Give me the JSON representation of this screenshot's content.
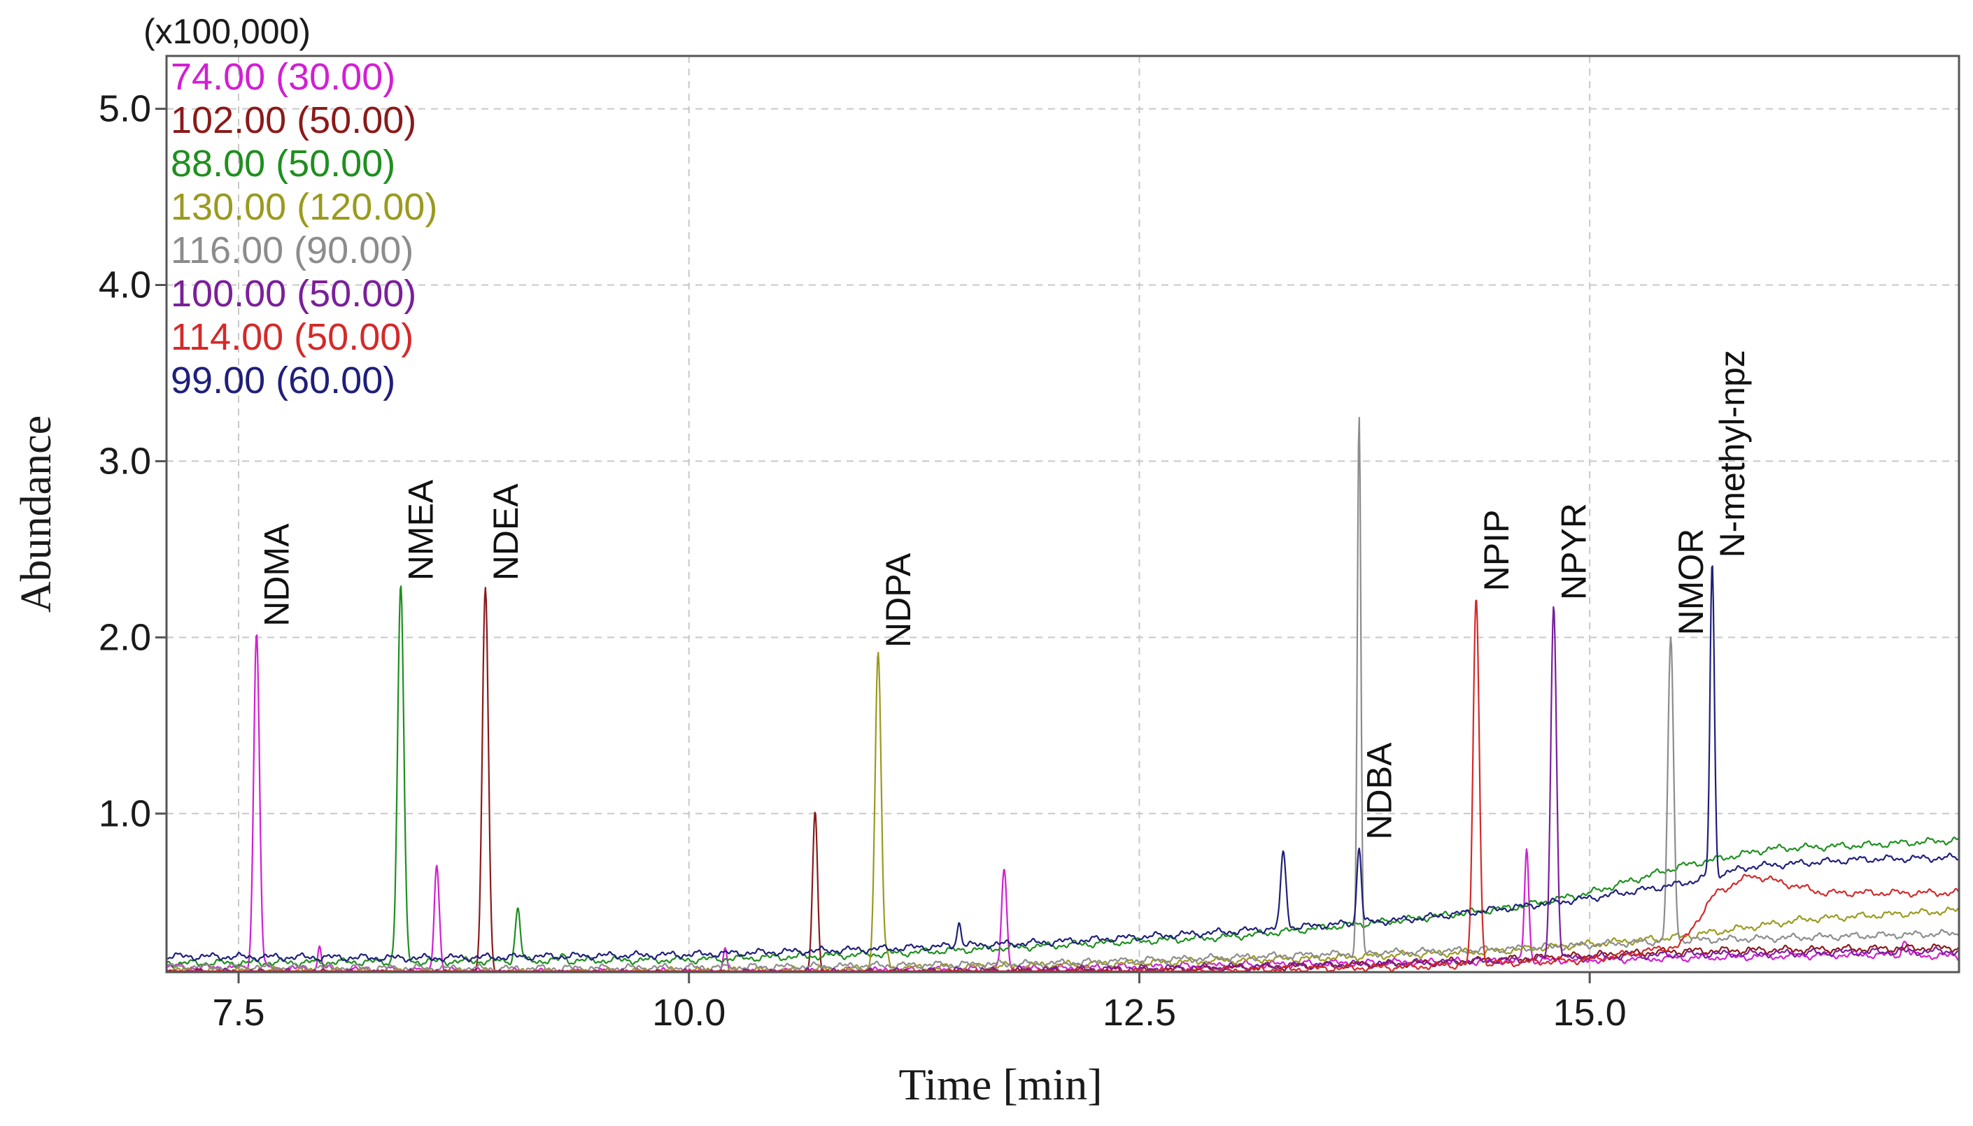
{
  "chart_data": {
    "type": "line",
    "title": "",
    "xlabel": "Time [min]",
    "ylabel": "Abundance",
    "y_multiplier": "(x100,000)",
    "xlim": [
      7.1,
      17.05
    ],
    "ylim": [
      0.1,
      5.3
    ],
    "x_ticks": [
      7.5,
      10.0,
      12.5,
      15.0
    ],
    "x_tick_labels": [
      "7.5",
      "10.0",
      "12.5",
      "15.0"
    ],
    "y_ticks": [
      1.0,
      2.0,
      3.0,
      4.0,
      5.0
    ],
    "y_tick_labels": [
      "1.0",
      "2.0",
      "3.0",
      "4.0",
      "5.0"
    ],
    "grid": true,
    "legend_position": "top-left",
    "series": [
      {
        "name": "74.00 (30.00)",
        "color": "#d21fd2",
        "baseline": [
          [
            7.1,
            0.13
          ],
          [
            9.0,
            0.1
          ],
          [
            10.5,
            0.1
          ],
          [
            12.0,
            0.12
          ],
          [
            13.5,
            0.15
          ],
          [
            15.0,
            0.17
          ],
          [
            16.5,
            0.2
          ],
          [
            17.05,
            0.19
          ]
        ],
        "peaks": [
          [
            7.6,
            2.03,
            0.016
          ],
          [
            7.95,
            0.25,
            0.01
          ],
          [
            8.6,
            0.72,
            0.014
          ],
          [
            10.2,
            0.22,
            0.01
          ],
          [
            11.75,
            0.69,
            0.014
          ],
          [
            14.65,
            0.8,
            0.012
          ],
          [
            16.75,
            0.28,
            0.015
          ]
        ]
      },
      {
        "name": "102.00 (50.00)",
        "color": "#8b1a1a",
        "baseline": [
          [
            7.1,
            0.1
          ],
          [
            9.0,
            0.09
          ],
          [
            10.5,
            0.09
          ],
          [
            12.5,
            0.11
          ],
          [
            14.0,
            0.15
          ],
          [
            15.5,
            0.22
          ],
          [
            17.05,
            0.24
          ]
        ],
        "peaks": [
          [
            8.87,
            2.29,
            0.017
          ],
          [
            10.7,
            1.01,
            0.014
          ]
        ]
      },
      {
        "name": "88.00 (50.00)",
        "color": "#1f8f1f",
        "baseline": [
          [
            7.1,
            0.15
          ],
          [
            8.5,
            0.16
          ],
          [
            10.0,
            0.17
          ],
          [
            11.0,
            0.2
          ],
          [
            12.0,
            0.25
          ],
          [
            13.0,
            0.3
          ],
          [
            14.0,
            0.4
          ],
          [
            14.6,
            0.47
          ],
          [
            15.0,
            0.55
          ],
          [
            15.5,
            0.7
          ],
          [
            16.0,
            0.8
          ],
          [
            16.5,
            0.82
          ],
          [
            17.05,
            0.85
          ]
        ],
        "peaks": [
          [
            8.4,
            2.29,
            0.017
          ],
          [
            9.05,
            0.46,
            0.014
          ],
          [
            9.3,
            0.2,
            0.012
          ]
        ]
      },
      {
        "name": "130.00 (120.00)",
        "color": "#9a9a1f",
        "baseline": [
          [
            7.1,
            0.11
          ],
          [
            9.0,
            0.1
          ],
          [
            10.5,
            0.11
          ],
          [
            12.0,
            0.14
          ],
          [
            13.5,
            0.18
          ],
          [
            14.5,
            0.22
          ],
          [
            15.5,
            0.3
          ],
          [
            16.2,
            0.4
          ],
          [
            17.05,
            0.45
          ]
        ],
        "peaks": [
          [
            11.05,
            1.91,
            0.017
          ],
          [
            11.1,
            0.2,
            0.01
          ]
        ]
      },
      {
        "name": "116.00 (90.00)",
        "color": "#8c8c8c",
        "baseline": [
          [
            7.1,
            0.13
          ],
          [
            9.0,
            0.12
          ],
          [
            10.5,
            0.13
          ],
          [
            12.0,
            0.15
          ],
          [
            13.5,
            0.2
          ],
          [
            14.5,
            0.23
          ],
          [
            15.5,
            0.28
          ],
          [
            17.05,
            0.32
          ]
        ],
        "peaks": [
          [
            13.72,
            3.24,
            0.01
          ],
          [
            15.45,
            1.98,
            0.016
          ]
        ]
      },
      {
        "name": "100.00 (50.00)",
        "color": "#7a1f9a",
        "baseline": [
          [
            7.1,
            0.1
          ],
          [
            9.0,
            0.09
          ],
          [
            11.0,
            0.1
          ],
          [
            12.5,
            0.12
          ],
          [
            14.0,
            0.15
          ],
          [
            15.5,
            0.2
          ],
          [
            17.05,
            0.22
          ]
        ],
        "peaks": [
          [
            14.8,
            2.18,
            0.016
          ]
        ]
      },
      {
        "name": "114.00 (50.00)",
        "color": "#d42a2a",
        "baseline": [
          [
            7.1,
            0.09
          ],
          [
            9.0,
            0.08
          ],
          [
            11.0,
            0.09
          ],
          [
            12.5,
            0.1
          ],
          [
            14.0,
            0.13
          ],
          [
            15.0,
            0.17
          ],
          [
            15.5,
            0.25
          ],
          [
            15.7,
            0.55
          ],
          [
            15.9,
            0.65
          ],
          [
            16.3,
            0.55
          ],
          [
            17.05,
            0.55
          ]
        ],
        "peaks": [
          [
            14.37,
            2.23,
            0.017
          ]
        ]
      },
      {
        "name": "99.00 (60.00)",
        "color": "#1f1f7a",
        "baseline": [
          [
            7.1,
            0.19
          ],
          [
            8.5,
            0.18
          ],
          [
            10.0,
            0.2
          ],
          [
            11.0,
            0.23
          ],
          [
            12.0,
            0.27
          ],
          [
            13.0,
            0.33
          ],
          [
            14.0,
            0.4
          ],
          [
            14.6,
            0.47
          ],
          [
            15.0,
            0.52
          ],
          [
            15.5,
            0.6
          ],
          [
            15.9,
            0.7
          ],
          [
            16.5,
            0.74
          ],
          [
            17.05,
            0.75
          ]
        ],
        "peaks": [
          [
            11.5,
            0.38,
            0.012
          ],
          [
            13.3,
            0.78,
            0.015
          ],
          [
            13.72,
            0.82,
            0.012
          ],
          [
            15.68,
            2.42,
            0.012
          ]
        ]
      }
    ],
    "annotations": [
      {
        "label": "NDMA",
        "x": 7.6
      },
      {
        "label": "NMEA",
        "x": 8.4
      },
      {
        "label": "NDEA",
        "x": 8.87
      },
      {
        "label": "NDPA",
        "x": 11.05
      },
      {
        "label": "NDBA",
        "x": 13.72
      },
      {
        "label": "NPIP",
        "x": 14.37
      },
      {
        "label": "NPYR",
        "x": 14.8
      },
      {
        "label": "NMOR",
        "x": 15.45
      },
      {
        "label": "N-methyl-npz",
        "x": 15.68
      }
    ]
  }
}
